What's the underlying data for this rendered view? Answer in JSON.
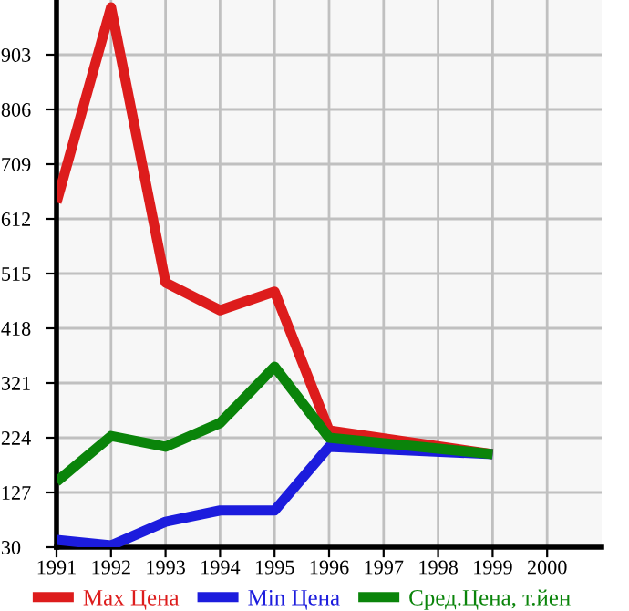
{
  "chart_data": {
    "type": "line",
    "x": [
      1991,
      1992,
      1993,
      1994,
      1995,
      1996,
      1999
    ],
    "series": [
      {
        "name": "Max Цена",
        "color": "#dd1c1c",
        "values": [
          641,
          987,
          499,
          450,
          483,
          237,
          195
        ]
      },
      {
        "name": "Min Цена",
        "color": "#1c1cdd",
        "values": [
          43,
          33,
          75,
          95,
          95,
          208,
          195
        ]
      },
      {
        "name": "Сред.Цена, т.йен",
        "color": "#0a840a",
        "values": [
          146,
          227,
          208,
          250,
          350,
          224,
          195
        ]
      }
    ],
    "xlim": [
      1991,
      2001
    ],
    "xticks": [
      1991,
      1992,
      1993,
      1994,
      1995,
      1996,
      1997,
      1998,
      1999,
      2000
    ],
    "ylim": [
      30,
      1000
    ],
    "yticks": [
      30,
      127,
      224,
      321,
      418,
      515,
      612,
      709,
      806,
      903
    ],
    "grid": true,
    "legend": "bottom",
    "marker": "none",
    "line_style": "solid"
  }
}
